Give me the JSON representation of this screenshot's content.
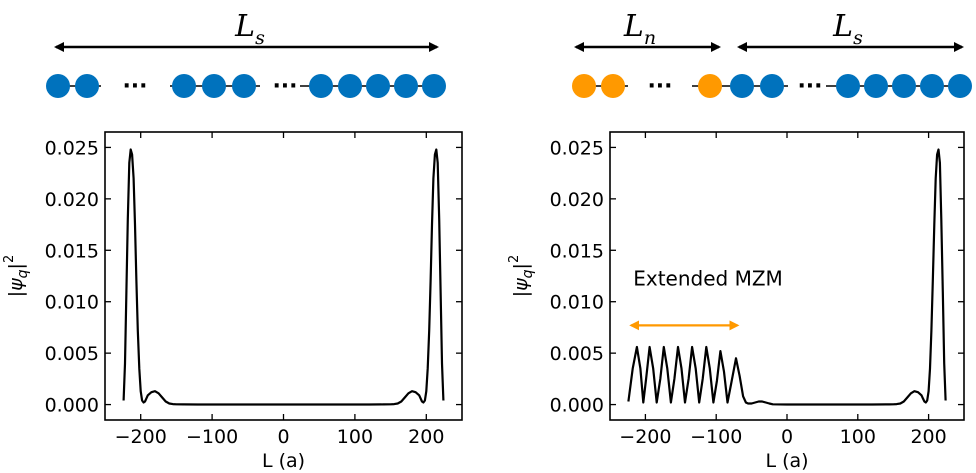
{
  "colors": {
    "sc": "#0072BD",
    "normal": "#FF9900",
    "curve": "#000000",
    "arrow": "#000000",
    "annot_arrow": "#FF9900"
  },
  "schematic": {
    "left": {
      "length_main": "L",
      "length_sub": "s",
      "ellipsis_1": "···",
      "ellipsis_2": "···"
    },
    "right": {
      "normal_main": "L",
      "normal_sub": "n",
      "sc_main": "L",
      "sc_sub": "s",
      "ellipsis_1": "···",
      "ellipsis_2": "···"
    }
  },
  "chart_data": [
    {
      "type": "line",
      "panel": "left",
      "xlabel": "L (a)",
      "ylabel_main": "|ψ",
      "ylabel_sub": "q",
      "ylabel_tail": "|",
      "ylabel_sup": "2",
      "xlim": [
        -250,
        250
      ],
      "ylim": [
        -0.0015,
        0.0265
      ],
      "xticks": [
        -200,
        -100,
        0,
        100,
        200
      ],
      "xtick_labels": [
        "−200",
        "−100",
        "0",
        "100",
        "200"
      ],
      "yticks": [
        0.0,
        0.005,
        0.01,
        0.015,
        0.02,
        0.025
      ],
      "ytick_labels": [
        "0.000",
        "0.005",
        "0.010",
        "0.015",
        "0.020",
        "0.025"
      ],
      "series": [
        {
          "name": "|psi_q|^2",
          "x": [
            -224,
            -222,
            -220,
            -218,
            -216,
            -214,
            -212,
            -210,
            -208,
            -206,
            -204,
            -202,
            -200,
            -198,
            -196,
            -194,
            -192,
            -190,
            -185,
            -180,
            -175,
            -170,
            -165,
            -160,
            -155,
            -150,
            -140,
            -120,
            -100,
            -50,
            0,
            50,
            100,
            120,
            140,
            150,
            155,
            160,
            165,
            170,
            175,
            180,
            185,
            190,
            192,
            194,
            196,
            198,
            200,
            202,
            204,
            206,
            208,
            210,
            212,
            214,
            216,
            218,
            220,
            222,
            224
          ],
          "y": [
            0.0004,
            0.004,
            0.011,
            0.018,
            0.0235,
            0.0248,
            0.0243,
            0.022,
            0.0175,
            0.012,
            0.0072,
            0.0035,
            0.0013,
            0.0004,
            0.0002,
            0.0003,
            0.0006,
            0.0009,
            0.0012,
            0.0013,
            0.0011,
            0.0007,
            0.0003,
            0.0001,
            5e-05,
            3e-05,
            2e-05,
            1e-05,
            1e-05,
            1e-05,
            1e-05,
            1e-05,
            1e-05,
            1e-05,
            2e-05,
            3e-05,
            5e-05,
            0.0001,
            0.0003,
            0.0007,
            0.0011,
            0.0013,
            0.0012,
            0.0009,
            0.0006,
            0.0003,
            0.0002,
            0.0004,
            0.0013,
            0.0035,
            0.0072,
            0.012,
            0.0175,
            0.022,
            0.0243,
            0.0248,
            0.0235,
            0.018,
            0.011,
            0.004,
            0.0004
          ]
        }
      ]
    },
    {
      "type": "line",
      "panel": "right",
      "xlabel": "L (a)",
      "ylabel_main": "|ψ",
      "ylabel_sub": "q",
      "ylabel_tail": "|",
      "ylabel_sup": "2",
      "xlim": [
        -250,
        250
      ],
      "ylim": [
        -0.0015,
        0.0265
      ],
      "xticks": [
        -200,
        -100,
        0,
        100,
        200
      ],
      "xtick_labels": [
        "−200",
        "−100",
        "0",
        "100",
        "200"
      ],
      "yticks": [
        0.0,
        0.005,
        0.01,
        0.015,
        0.02,
        0.025
      ],
      "ytick_labels": [
        "0.000",
        "0.005",
        "0.010",
        "0.015",
        "0.020",
        "0.025"
      ],
      "annotation": {
        "text": "Extended MZM",
        "x_start": -220,
        "x_end": -70,
        "y": 0.0077
      },
      "series": [
        {
          "name": "|psi_q|^2",
          "oscillation_peaks_x": [
            -212,
            -194,
            -174,
            -154,
            -134,
            -114,
            -94,
            -72
          ],
          "oscillation_peaks_y": [
            0.0056,
            0.0056,
            0.0056,
            0.0056,
            0.0056,
            0.0056,
            0.0052,
            0.0045
          ],
          "x": [
            -224,
            -218,
            -212,
            -207,
            -203,
            -199,
            -194,
            -189,
            -184,
            -179,
            -174,
            -169,
            -164,
            -159,
            -154,
            -149,
            -144,
            -139,
            -134,
            -129,
            -124,
            -119,
            -114,
            -109,
            -104,
            -99,
            -94,
            -89,
            -84,
            -79,
            -72,
            -67,
            -62,
            -58,
            -55,
            -50,
            -45,
            -40,
            -35,
            -30,
            -25,
            -20,
            0,
            50,
            100,
            120,
            140,
            150,
            155,
            160,
            165,
            170,
            175,
            180,
            185,
            190,
            192,
            194,
            196,
            198,
            200,
            202,
            204,
            206,
            208,
            210,
            212,
            214,
            216,
            218,
            220,
            222,
            224
          ],
          "y": [
            0.0003,
            0.0035,
            0.0056,
            0.0035,
            0.0002,
            0.0025,
            0.0056,
            0.0035,
            0.0002,
            0.0025,
            0.0056,
            0.0035,
            0.0002,
            0.0025,
            0.0056,
            0.0035,
            0.0002,
            0.0025,
            0.0056,
            0.0035,
            0.0002,
            0.0025,
            0.0056,
            0.0035,
            0.0002,
            0.0023,
            0.0052,
            0.0032,
            0.0002,
            0.002,
            0.0045,
            0.0028,
            0.0008,
            0.0002,
            0.0001,
            0.0001,
            0.0002,
            0.0003,
            0.0003,
            0.0002,
            0.0001,
            3e-05,
            1e-05,
            1e-05,
            1e-05,
            1e-05,
            2e-05,
            3e-05,
            5e-05,
            0.0001,
            0.0003,
            0.0007,
            0.0011,
            0.0013,
            0.0012,
            0.0009,
            0.0006,
            0.0003,
            0.0002,
            0.0004,
            0.0013,
            0.0035,
            0.0072,
            0.012,
            0.0175,
            0.022,
            0.0243,
            0.0248,
            0.0235,
            0.018,
            0.011,
            0.004,
            0.0004
          ]
        }
      ]
    }
  ]
}
